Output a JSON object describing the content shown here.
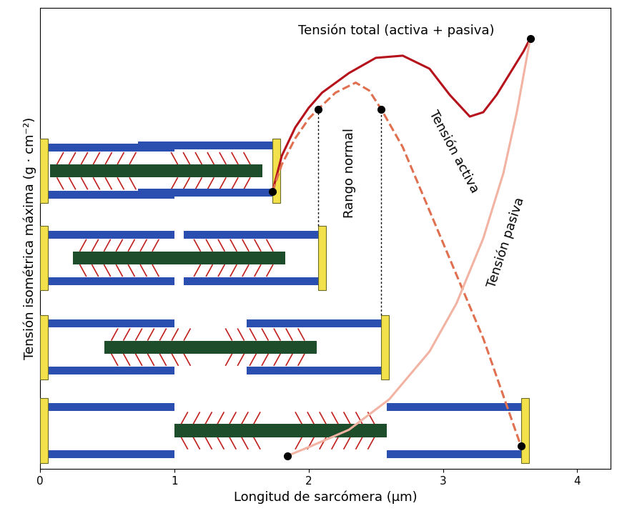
{
  "chart_data": {
    "type": "line",
    "x_label": "Longitud de sarcómera (µm)",
    "y_label": "Tensión isométrica máxima (g · cm⁻²)",
    "xlim": [
      0,
      4.25
    ],
    "xticks": [
      0,
      1,
      2,
      3,
      4
    ],
    "ylim": [
      0,
      106
    ],
    "tick_labels": "x",
    "grid": false,
    "series": [
      {
        "name": "Tensión total (activa + pasiva)",
        "color": "#b5121b",
        "line_style": "solid",
        "x": [
          1.73,
          1.8,
          1.9,
          2.0,
          2.1,
          2.3,
          2.5,
          2.7,
          2.9,
          3.05,
          3.2,
          3.3,
          3.4,
          3.5,
          3.6,
          3.65
        ],
        "values": [
          63.7,
          72,
          78.5,
          83,
          86.5,
          91,
          94.5,
          95,
          92,
          86,
          81,
          82,
          86,
          91,
          96,
          99
        ]
      },
      {
        "name": "Tensión activa",
        "color": "#e07050",
        "line_style": "dashed",
        "marker": "circle",
        "x": [
          1.73,
          1.8,
          1.9,
          2.0,
          2.07,
          2.2,
          2.35,
          2.45,
          2.54,
          2.7,
          3.0,
          3.3,
          3.58
        ],
        "values": [
          63.7,
          70,
          76,
          80.5,
          82.7,
          86.5,
          88.8,
          87,
          82.7,
          74,
          52,
          30,
          5.3
        ]
      },
      {
        "name": "Tensión pasiva",
        "color": "#f2b3a3",
        "line_style": "solid",
        "marker": "circle",
        "x": [
          1.84,
          2.0,
          2.3,
          2.6,
          2.9,
          3.1,
          3.3,
          3.45,
          3.55,
          3.65
        ],
        "values": [
          3,
          5,
          9,
          16,
          27,
          38,
          53,
          68,
          82,
          99
        ]
      }
    ],
    "annotations": [
      {
        "text": "Rango normal",
        "x": [
          2.07,
          2.54
        ]
      }
    ]
  }
}
